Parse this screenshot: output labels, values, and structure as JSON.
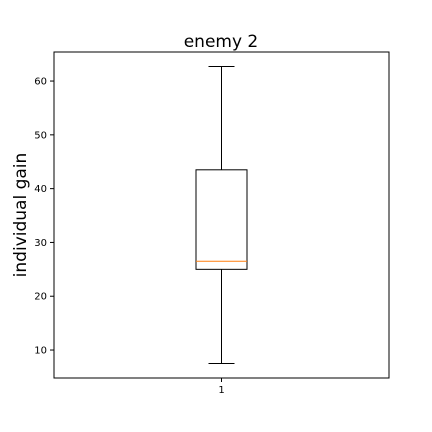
{
  "chart_data": {
    "type": "boxplot",
    "title": "enemy 2",
    "xlabel": "",
    "ylabel": "individual gain",
    "categories": [
      "1"
    ],
    "boxes": [
      {
        "category": "1",
        "whisker_low": 7.5,
        "q1": 25.0,
        "median": 26.5,
        "q3": 43.5,
        "whisker_high": 62.7
      }
    ],
    "yticks": [
      10,
      20,
      30,
      40,
      50,
      60
    ],
    "ylim": [
      4.8,
      65.4
    ],
    "grid": false,
    "colors": {
      "box": "#000000",
      "median": "#ff7f0e",
      "axes": "#000000",
      "background": "#ffffff"
    }
  }
}
